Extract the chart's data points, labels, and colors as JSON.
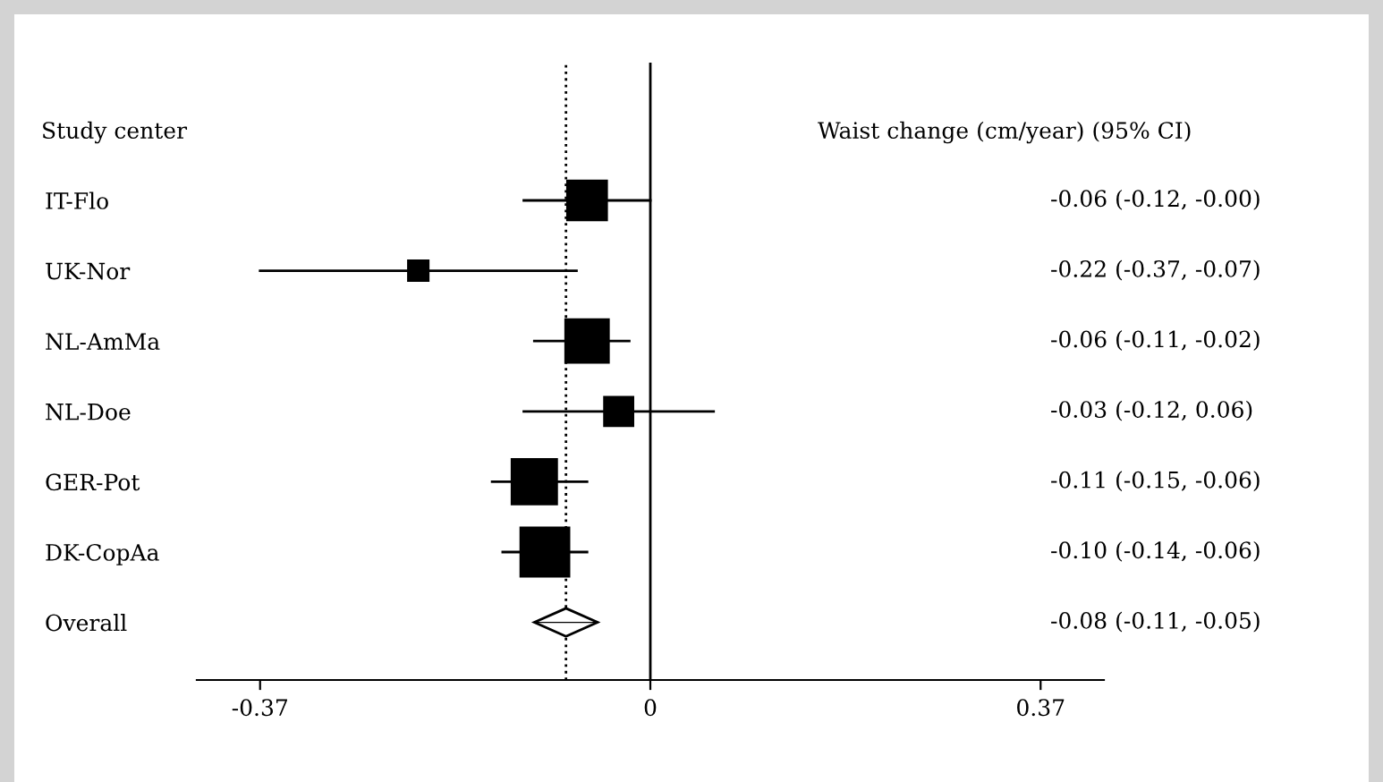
{
  "chart_data": {
    "type": "bubble",
    "orientation": "horizontal",
    "categories": [
      "IT-Flo",
      "UK-Nor",
      "NL-AmMa",
      "NL-Doe",
      "GER-Pot",
      "DK-CopAa",
      "Overall"
    ],
    "ylabel": "Study center",
    "annotations": [
      "Waist change (cm/year) (95% CI)"
    ],
    "series": [
      {
        "color": "#000000",
        "marker": "square",
        "values": [
          -0.06,
          -0.22,
          -0.06,
          -0.03,
          -0.11,
          -0.1,
          null
        ],
        "errors": [
          [
            -0.12,
            -0.0
          ],
          [
            -0.37,
            -0.07
          ],
          [
            -0.11,
            -0.02
          ],
          [
            -0.12,
            0.06
          ],
          [
            -0.15,
            -0.06
          ],
          [
            -0.14,
            -0.06
          ],
          null
        ],
        "sizes": [
          0.66,
          0.17,
          0.79,
          0.35,
          0.86,
          1,
          null
        ]
      },
      {
        "type": "scatter",
        "color": "#000000",
        "marker": "diamond",
        "values": [
          null,
          null,
          null,
          null,
          null,
          null,
          -0.08
        ],
        "errors": [
          null,
          null,
          null,
          null,
          null,
          null,
          [
            -0.11,
            -0.05
          ]
        ]
      }
    ],
    "value_labels": [
      "-0.06 (-0.12, -0.00)",
      "-0.22 (-0.37, -0.07)",
      "-0.06 (-0.11, -0.02)",
      "-0.03 (-0.12, 0.06)",
      "-0.11 (-0.15, -0.06)",
      "-0.10 (-0.14, -0.06)",
      "-0.08 (-0.11, -0.05)"
    ],
    "xlim": [
      -0.43,
      0.43
    ],
    "xticks": [
      -0.37,
      0,
      0.37
    ],
    "ref_lines": [
      {
        "axis": "x",
        "value": 0,
        "color": "#000000",
        "line_style": "solid"
      },
      {
        "axis": "x",
        "value": -0.08,
        "color": "#000000",
        "line_style": "dotted"
      }
    ],
    "grid": false,
    "legend": false
  }
}
